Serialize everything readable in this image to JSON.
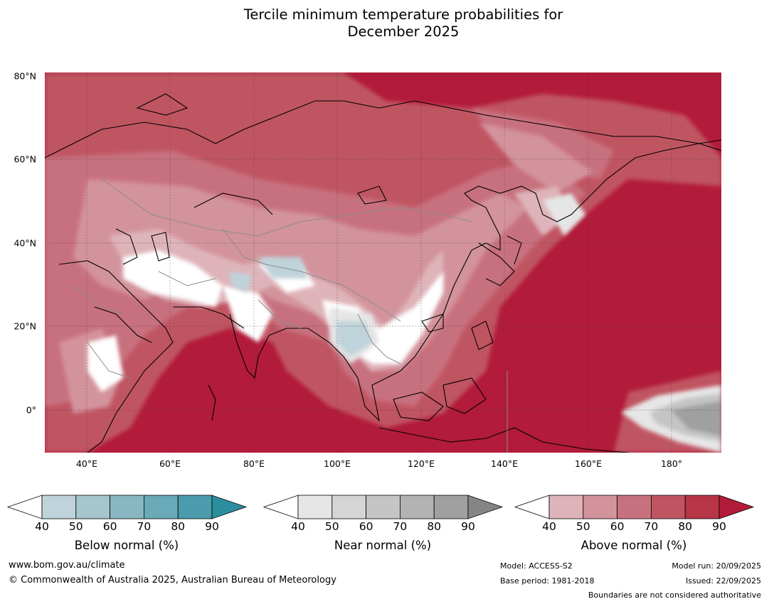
{
  "title_line1": "Tercile minimum temperature probabilities for",
  "title_line2": "December 2025",
  "lat_labels": [
    "80°N",
    "60°N",
    "40°N",
    "20°N",
    "0°"
  ],
  "lon_labels": [
    "40°E",
    "60°E",
    "80°E",
    "100°E",
    "120°E",
    "140°E",
    "160°E",
    "180°"
  ],
  "colorbars": {
    "below": {
      "label": "Below normal (%)",
      "ticks": [
        "40",
        "50",
        "60",
        "70",
        "80",
        "90"
      ],
      "colors": [
        "#bfd3da",
        "#a5c6cd",
        "#88b6c1",
        "#6aa9b7",
        "#4a9cac",
        "#2c8d9e"
      ]
    },
    "near": {
      "label": "Near normal (%)",
      "ticks": [
        "40",
        "50",
        "60",
        "70",
        "80",
        "90"
      ],
      "colors": [
        "#e6e6e6",
        "#d5d5d5",
        "#c5c5c5",
        "#b3b3b3",
        "#a0a0a0",
        "#858585"
      ]
    },
    "above": {
      "label": "Above normal (%)",
      "ticks": [
        "40",
        "50",
        "60",
        "70",
        "80",
        "90"
      ],
      "colors": [
        "#deb4ba",
        "#d3939c",
        "#c8717e",
        "#c05562",
        "#b83548",
        "#b21b39"
      ]
    }
  },
  "footer": {
    "website": "www.bom.gov.au/climate",
    "copyright": "© Commonwealth of Australia 2025, Australian Bureau of Meteorology",
    "model": "Model: ACCESS-S2",
    "base_period": "Base period: 1981-2018",
    "model_run": "Model run: 20/09/2025",
    "issued": "Issued: 22/09/2025",
    "disclaimer": "Boundaries are not considered authoritative"
  }
}
